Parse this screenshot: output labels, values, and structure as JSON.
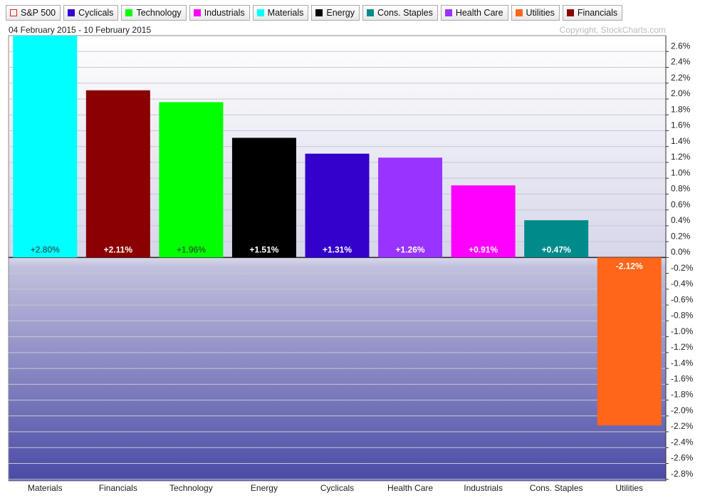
{
  "chart_data": {
    "type": "bar",
    "legend": [
      {
        "name": "S&P 500",
        "color": "#e02020",
        "hollow": true
      },
      {
        "name": "Cyclicals",
        "color": "#3300cc"
      },
      {
        "name": "Technology",
        "color": "#00ff00"
      },
      {
        "name": "Industrials",
        "color": "#ff00ff"
      },
      {
        "name": "Materials",
        "color": "#00ffff"
      },
      {
        "name": "Energy",
        "color": "#000000"
      },
      {
        "name": "Cons. Staples",
        "color": "#008b8b"
      },
      {
        "name": "Health Care",
        "color": "#9933ff"
      },
      {
        "name": "Utilities",
        "color": "#ff6619"
      },
      {
        "name": "Financials",
        "color": "#8b0000"
      }
    ],
    "subtitle": "04 February 2015 - 10 February 2015",
    "copyright": "Copyright, StockCharts.com",
    "categories": [
      "Materials",
      "Financials",
      "Technology",
      "Energy",
      "Cyclicals",
      "Health Care",
      "Industrials",
      "Cons. Staples",
      "Utilities"
    ],
    "values": [
      2.8,
      2.11,
      1.96,
      1.51,
      1.31,
      1.26,
      0.91,
      0.47,
      -2.12
    ],
    "value_labels": [
      "+2.80%",
      "+2.11%",
      "+1.96%",
      "+1.51%",
      "+1.31%",
      "+1.26%",
      "+0.91%",
      "+0.47%",
      "-2.12%"
    ],
    "colors": [
      "#00ffff",
      "#8b0000",
      "#00ff00",
      "#000000",
      "#3300cc",
      "#9933ff",
      "#ff00ff",
      "#008b8b",
      "#ff6619"
    ],
    "ylim": [
      -2.82,
      2.8
    ],
    "yticks": [
      {
        "value": 2.6,
        "label": "2.6%"
      },
      {
        "value": 2.4,
        "label": "2.4%"
      },
      {
        "value": 2.2,
        "label": "2.2%"
      },
      {
        "value": 2.0,
        "label": "2.0%"
      },
      {
        "value": 1.8,
        "label": "1.8%"
      },
      {
        "value": 1.6,
        "label": "1.6%"
      },
      {
        "value": 1.4,
        "label": "1.4%"
      },
      {
        "value": 1.2,
        "label": "1.2%"
      },
      {
        "value": 1.0,
        "label": "1.0%"
      },
      {
        "value": 0.8,
        "label": "0.8%"
      },
      {
        "value": 0.6,
        "label": "0.6%"
      },
      {
        "value": 0.4,
        "label": "0.4%"
      },
      {
        "value": 0.2,
        "label": "0.2%"
      },
      {
        "value": 0.0,
        "label": "0.0%"
      },
      {
        "value": -0.2,
        "label": "-0.2%"
      },
      {
        "value": -0.4,
        "label": "-0.4%"
      },
      {
        "value": -0.6,
        "label": "-0.6%"
      },
      {
        "value": -0.8,
        "label": "-0.8%"
      },
      {
        "value": -1.0,
        "label": "-1.0%"
      },
      {
        "value": -1.2,
        "label": "-1.2%"
      },
      {
        "value": -1.4,
        "label": "-1.4%"
      },
      {
        "value": -1.6,
        "label": "-1.6%"
      },
      {
        "value": -1.8,
        "label": "-1.8%"
      },
      {
        "value": -2.0,
        "label": "-2.0%"
      },
      {
        "value": -2.2,
        "label": "-2.2%"
      },
      {
        "value": -2.4,
        "label": "-2.4%"
      },
      {
        "value": -2.6,
        "label": "-2.6%"
      },
      {
        "value": -2.8,
        "label": "-2.8%"
      }
    ],
    "grid": true
  }
}
